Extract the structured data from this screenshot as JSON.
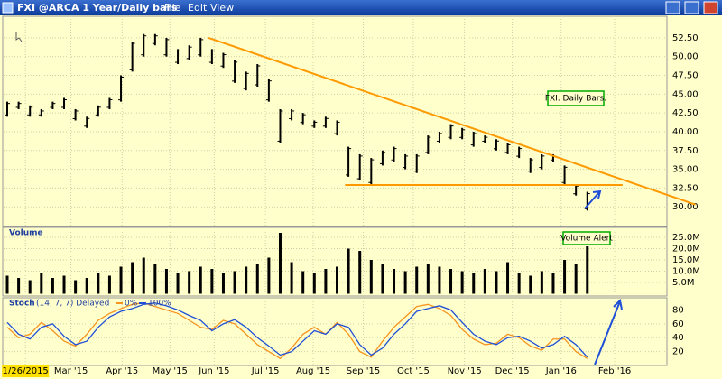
{
  "window": {
    "title": "FXI @ARCA 1 Year/Daily bars",
    "menu": [
      "File",
      "Edit",
      "View"
    ]
  },
  "chart_data": [
    {
      "type": "ohlc",
      "annotation": "FXI. Daily Bars.",
      "x": [
        0,
        1,
        2,
        3,
        4,
        5,
        6,
        7,
        8,
        9,
        10,
        11,
        12,
        13,
        14,
        15,
        16,
        17,
        18,
        19,
        20,
        21,
        22,
        23,
        24,
        25,
        26,
        27,
        28,
        29,
        30,
        31,
        32,
        33,
        34,
        35,
        36,
        37,
        38,
        39,
        40,
        41,
        42,
        43,
        44,
        45,
        46,
        47,
        48,
        49,
        50,
        51
      ],
      "high": [
        44,
        44,
        43.5,
        43,
        44,
        44.5,
        43,
        42,
        43.5,
        44.5,
        47.5,
        52,
        53,
        53,
        52.5,
        51,
        51.5,
        52.5,
        51,
        50.5,
        49.5,
        48,
        49,
        47,
        43,
        43,
        42.5,
        41.5,
        42,
        41.5,
        38,
        37,
        36.5,
        37.5,
        38,
        37,
        37,
        39.5,
        40,
        41,
        40.5,
        40,
        39.5,
        39,
        38.5,
        38,
        36.5,
        37,
        37,
        35.5,
        33,
        32
      ],
      "low": [
        42,
        43,
        42,
        42,
        43,
        43,
        41.5,
        40.5,
        42,
        43,
        44,
        48,
        50,
        51.5,
        50,
        49,
        49.5,
        50,
        49,
        48.5,
        46.5,
        45.5,
        46,
        44,
        38.5,
        41.5,
        41,
        40.5,
        40.5,
        39.5,
        34,
        33.5,
        33,
        35.5,
        36,
        35,
        34.5,
        37,
        38.5,
        39,
        39,
        38,
        38.5,
        37.5,
        37,
        36.5,
        34.5,
        35,
        36,
        33,
        31.5,
        29.5
      ],
      "color": "#000000",
      "xlim": [
        0,
        58
      ],
      "xticks": [
        {
          "value": 1.6,
          "label": "1/26/2015"
        },
        {
          "value": 5.6,
          "label": "Mar '15"
        },
        {
          "value": 10.1,
          "label": "Apr '15"
        },
        {
          "value": 14.3,
          "label": "May '15"
        },
        {
          "value": 18.2,
          "label": "Jun '15"
        },
        {
          "value": 22.7,
          "label": "Jul '15"
        },
        {
          "value": 26.9,
          "label": "Aug '15"
        },
        {
          "value": 31.3,
          "label": "Sep '15"
        },
        {
          "value": 35.7,
          "label": "Oct '15"
        },
        {
          "value": 40.2,
          "label": "Nov '15"
        },
        {
          "value": 44.4,
          "label": "Dec '15"
        },
        {
          "value": 48.7,
          "label": "Jan '16"
        },
        {
          "value": 53.4,
          "label": "Feb '16"
        }
      ],
      "ylim": [
        27.5,
        55.25
      ],
      "yticks": [
        {
          "value": 30,
          "label": "30.00"
        },
        {
          "value": 32.5,
          "label": "32.50"
        },
        {
          "value": 35,
          "label": "35.00"
        },
        {
          "value": 37.5,
          "label": "37.50"
        },
        {
          "value": 40,
          "label": "40.00"
        },
        {
          "value": 42.5,
          "label": "42.50"
        },
        {
          "value": 45,
          "label": "45.00"
        },
        {
          "value": 47.5,
          "label": "47.50"
        },
        {
          "value": 50,
          "label": "50.00"
        },
        {
          "value": 52.5,
          "label": "52.50"
        }
      ],
      "trendlines": [
        {
          "x": [
            17.7,
            60.5
          ],
          "y": [
            52.5,
            30.3
          ],
          "color": "#ff9900"
        },
        {
          "x": [
            29.7,
            54.1
          ],
          "y": [
            32.9,
            32.9
          ],
          "color": "#ff9900"
        }
      ],
      "grid": true
    },
    {
      "type": "bar",
      "title": "Volume",
      "annotation": "Volume Alert",
      "x": [
        0,
        1,
        2,
        3,
        4,
        5,
        6,
        7,
        8,
        9,
        10,
        11,
        12,
        13,
        14,
        15,
        16,
        17,
        18,
        19,
        20,
        21,
        22,
        23,
        24,
        25,
        26,
        27,
        28,
        29,
        30,
        31,
        32,
        33,
        34,
        35,
        36,
        37,
        38,
        39,
        40,
        41,
        42,
        43,
        44,
        45,
        46,
        47,
        48,
        49,
        50,
        51
      ],
      "values": [
        8000000,
        7000000,
        6000000,
        9000000,
        7000000,
        8000000,
        6000000,
        7000000,
        9000000,
        8000000,
        12000000,
        14000000,
        16000000,
        13000000,
        11000000,
        9000000,
        10000000,
        12000000,
        11000000,
        9000000,
        10000000,
        12000000,
        13000000,
        16000000,
        27000000,
        14000000,
        10000000,
        9000000,
        11000000,
        12000000,
        20000000,
        19000000,
        15000000,
        13000000,
        11000000,
        10000000,
        12000000,
        13000000,
        12000000,
        11000000,
        10000000,
        9000000,
        11000000,
        10000000,
        14000000,
        9000000,
        8000000,
        10000000,
        9000000,
        15000000,
        13000000,
        21000000
      ],
      "color": "#000000",
      "xlim": [
        0,
        58
      ],
      "ylim": [
        0,
        27000000
      ],
      "yticks": [
        {
          "value": 5000000,
          "label": "5.0M"
        },
        {
          "value": 10000000,
          "label": "10.0M"
        },
        {
          "value": 15000000,
          "label": "15.0M"
        },
        {
          "value": 20000000,
          "label": "20.0M"
        },
        {
          "value": 25000000,
          "label": "25.0M"
        }
      ]
    },
    {
      "type": "line",
      "title": "Stoch",
      "subtitle": "(14, 7, 7) Delayed",
      "x": [
        0,
        1,
        2,
        3,
        4,
        5,
        6,
        7,
        8,
        9,
        10,
        11,
        12,
        13,
        14,
        15,
        16,
        17,
        18,
        19,
        20,
        21,
        22,
        23,
        24,
        25,
        26,
        27,
        28,
        29,
        30,
        31,
        32,
        33,
        34,
        35,
        36,
        37,
        38,
        39,
        40,
        41,
        42,
        43,
        44,
        45,
        46,
        47,
        48,
        49,
        50,
        51
      ],
      "series": [
        {
          "name": "0%",
          "color": "#f7931e",
          "values": [
            55,
            40,
            45,
            62,
            50,
            35,
            28,
            45,
            65,
            75,
            82,
            88,
            90,
            85,
            80,
            75,
            65,
            55,
            52,
            65,
            60,
            45,
            30,
            20,
            10,
            25,
            45,
            55,
            45,
            62,
            45,
            20,
            12,
            35,
            55,
            70,
            85,
            88,
            82,
            72,
            52,
            38,
            30,
            32,
            45,
            40,
            28,
            22,
            38,
            38,
            20,
            10
          ]
        },
        {
          "name": "100%",
          "color": "#1f4fd6",
          "values": [
            62,
            45,
            38,
            55,
            60,
            42,
            30,
            35,
            55,
            70,
            78,
            82,
            88,
            90,
            86,
            80,
            72,
            65,
            50,
            60,
            66,
            55,
            40,
            28,
            15,
            20,
            35,
            50,
            45,
            60,
            55,
            30,
            15,
            25,
            45,
            60,
            78,
            82,
            86,
            80,
            62,
            45,
            35,
            30,
            40,
            42,
            35,
            25,
            30,
            42,
            30,
            12
          ]
        }
      ],
      "xlim": [
        0,
        58
      ],
      "ylim": [
        0,
        91
      ],
      "yticks": [
        20,
        40,
        60,
        80
      ]
    }
  ]
}
